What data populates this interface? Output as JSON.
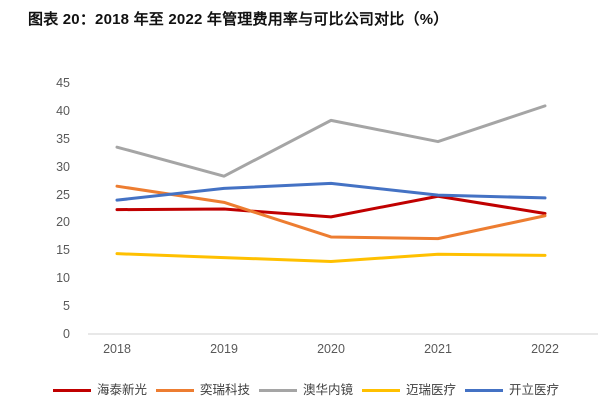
{
  "page": {
    "title": "图表 20：2018 年至 2022 年管理费用率与可比公司对比（%）"
  },
  "chart_data": {
    "type": "line",
    "title": "2018 年至 2022 年管理费用率与可比公司对比（%）",
    "categories": [
      "2018",
      "2019",
      "2020",
      "2021",
      "2022"
    ],
    "series": [
      {
        "name": "海泰新光",
        "color": "#C00000",
        "values": [
          22.3,
          22.4,
          21.0,
          24.7,
          21.6
        ]
      },
      {
        "name": "奕瑞科技",
        "color": "#ED7D31",
        "values": [
          26.5,
          23.6,
          17.4,
          17.1,
          21.2
        ]
      },
      {
        "name": "澳华内镜",
        "color": "#A5A5A5",
        "values": [
          33.5,
          28.3,
          38.3,
          34.5,
          40.9
        ]
      },
      {
        "name": "迈瑞医疗",
        "color": "#FFC000",
        "values": [
          14.4,
          13.7,
          13.0,
          14.3,
          14.1
        ]
      },
      {
        "name": "开立医疗",
        "color": "#4472C4",
        "values": [
          24.0,
          26.1,
          27.0,
          24.9,
          24.4
        ]
      }
    ],
    "xlabel": "",
    "ylabel": "",
    "ylim": [
      0,
      45
    ],
    "y_ticks": [
      0,
      5,
      10,
      15,
      20,
      25,
      30,
      35,
      40,
      45
    ],
    "grid": false,
    "legend_position": "bottom",
    "axis_color": "#D9D9D9",
    "tick_label_color": "#595959",
    "legend_label_color": "#404040"
  }
}
